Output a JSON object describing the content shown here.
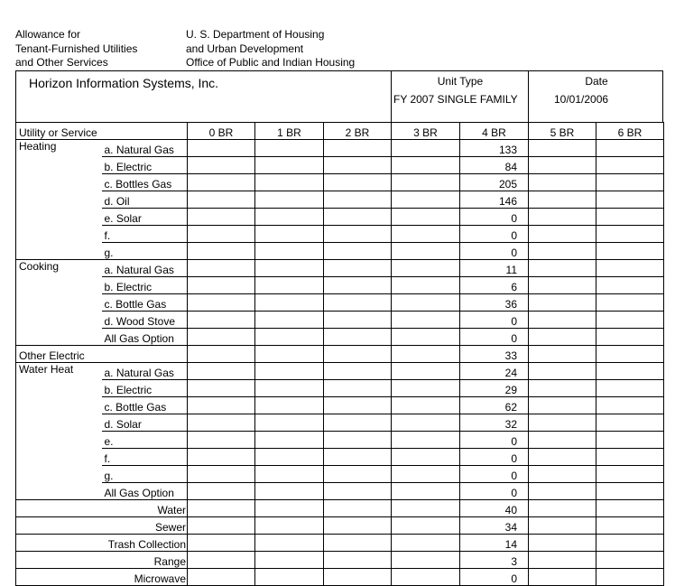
{
  "header": {
    "left": [
      "Allowance for",
      "Tenant-Furnished Utilities",
      "and Other Services"
    ],
    "right": [
      "U. S. Department of Housing",
      "and Urban Development",
      "Office of Public and Indian Housing"
    ]
  },
  "company": "Horizon Information Systems, Inc.",
  "unit_type": {
    "label": "Unit Type",
    "value": "FY 2007 SINGLE FAMILY"
  },
  "date": {
    "label": "Date",
    "value": "10/01/2006"
  },
  "columns": {
    "label": "Utility or Service",
    "br": [
      "0 BR",
      "1 BR",
      "2 BR",
      "3 BR",
      "4 BR",
      "5 BR",
      "6 BR"
    ]
  },
  "groups": [
    {
      "label": "Heating",
      "rows": [
        {
          "label": "a. Natural Gas",
          "v4": "133"
        },
        {
          "label": "b. Electric",
          "v4": "84"
        },
        {
          "label": "c. Bottles Gas",
          "v4": "205"
        },
        {
          "label": "d. Oil",
          "v4": "146"
        },
        {
          "label": "e. Solar",
          "v4": "0"
        },
        {
          "label": "f.",
          "v4": "0"
        },
        {
          "label": "g.",
          "v4": "0"
        }
      ]
    },
    {
      "label": "Cooking",
      "rows": [
        {
          "label": "a. Natural Gas",
          "v4": "11"
        },
        {
          "label": "b. Electric",
          "v4": "6"
        },
        {
          "label": "c. Bottle Gas",
          "v4": "36"
        },
        {
          "label": "d. Wood Stove",
          "v4": "0"
        },
        {
          "label": "All Gas Option",
          "v4": "0"
        }
      ]
    },
    {
      "label": "Other Electric",
      "single": true,
      "rows": [
        {
          "v4": "33"
        }
      ]
    },
    {
      "label": "Water Heat",
      "rows": [
        {
          "label": "a. Natural Gas",
          "v4": "24"
        },
        {
          "label": "b. Electric",
          "v4": "29"
        },
        {
          "label": "c. Bottle Gas",
          "v4": "62"
        },
        {
          "label": "d. Solar",
          "v4": "32"
        },
        {
          "label": "e.",
          "v4": "0"
        },
        {
          "label": "f.",
          "v4": "0"
        },
        {
          "label": "g.",
          "v4": "0"
        },
        {
          "label": "All Gas Option",
          "v4": "0"
        }
      ]
    },
    {
      "label": "Water",
      "right": true,
      "rows": [
        {
          "v4": "40"
        }
      ]
    },
    {
      "label": "Sewer",
      "right": true,
      "rows": [
        {
          "v4": "34"
        }
      ]
    },
    {
      "label": "Trash Collection",
      "right": true,
      "rows": [
        {
          "v4": "14"
        }
      ]
    },
    {
      "label": "Range",
      "right": true,
      "rows": [
        {
          "v4": "3"
        }
      ]
    },
    {
      "label": "Microwave",
      "right": true,
      "rows": [
        {
          "v4": "0"
        }
      ]
    }
  ]
}
